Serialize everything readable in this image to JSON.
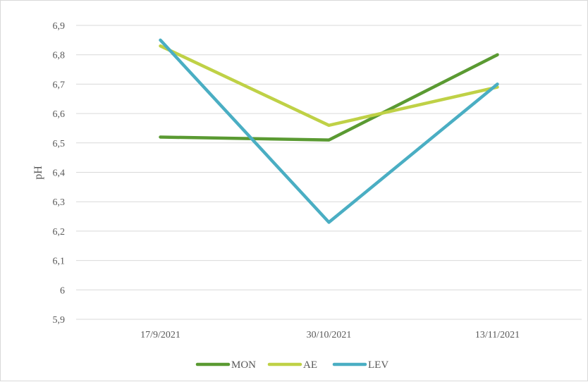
{
  "chart_data": {
    "type": "line",
    "title": "",
    "xlabel": "",
    "ylabel": "pH",
    "categories": [
      "17/9/2021",
      "30/10/2021",
      "13/11/2021"
    ],
    "ylim": [
      5.9,
      6.9
    ],
    "yticks": [
      "6,9",
      "6,8",
      "6,7",
      "6,6",
      "6,5",
      "6,4",
      "6,3",
      "6,2",
      "6,1",
      "6",
      "5,9"
    ],
    "ytick_values": [
      6.9,
      6.8,
      6.7,
      6.6,
      6.5,
      6.4,
      6.3,
      6.2,
      6.1,
      6.0,
      5.9
    ],
    "grid": true,
    "legend_position": "bottom",
    "series": [
      {
        "name": "MON",
        "color": "#5a9a32",
        "values": [
          6.52,
          6.51,
          6.8
        ]
      },
      {
        "name": "AE",
        "color": "#bfd146",
        "values": [
          6.83,
          6.56,
          6.69
        ]
      },
      {
        "name": "LEV",
        "color": "#4aaec3",
        "values": [
          6.85,
          6.23,
          6.7
        ]
      }
    ]
  }
}
